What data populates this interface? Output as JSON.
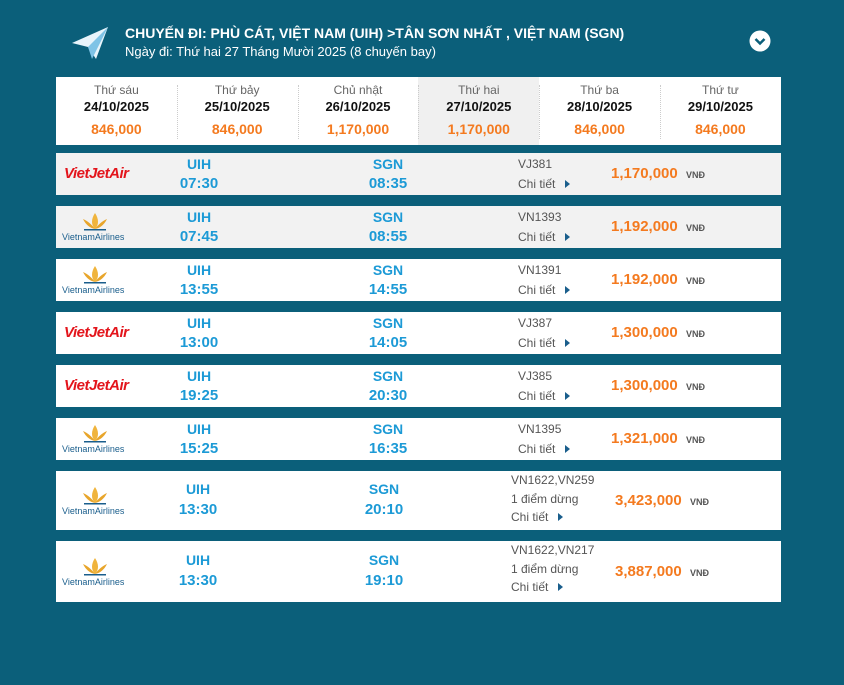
{
  "header": {
    "title": "CHUYẾN ĐI: PHÙ CÁT, VIỆT NAM (UIH) >TÂN SƠN NHẤT , VIỆT NAM (SGN)",
    "subtitle": "Ngày đi: Thứ hai 27 Tháng Mười 2025 (8 chuyến bay)"
  },
  "dates": [
    {
      "day": "Thứ sáu",
      "date": "24/10/2025",
      "price": "846,000"
    },
    {
      "day": "Thứ bảy",
      "date": "25/10/2025",
      "price": "846,000"
    },
    {
      "day": "Chủ nhật",
      "date": "26/10/2025",
      "price": "1,170,000"
    },
    {
      "day": "Thứ hai",
      "date": "27/10/2025",
      "price": "1,170,000",
      "selected": true
    },
    {
      "day": "Thứ ba",
      "date": "28/10/2025",
      "price": "846,000"
    },
    {
      "day": "Thứ tư",
      "date": "29/10/2025",
      "price": "846,000"
    }
  ],
  "flights": [
    {
      "airline": "VietJetAir",
      "from": "UIH",
      "dep": "07:30",
      "to": "SGN",
      "arr": "08:35",
      "code": "VJ381",
      "detail": "Chi tiết",
      "price": "1,170,000",
      "currency": "VNĐ",
      "shaded": true
    },
    {
      "airline": "VietnamAirlines",
      "from": "UIH",
      "dep": "07:45",
      "to": "SGN",
      "arr": "08:55",
      "code": "VN1393",
      "detail": "Chi tiết",
      "price": "1,192,000",
      "currency": "VNĐ",
      "shaded": true
    },
    {
      "airline": "VietnamAirlines",
      "from": "UIH",
      "dep": "13:55",
      "to": "SGN",
      "arr": "14:55",
      "code": "VN1391",
      "detail": "Chi tiết",
      "price": "1,192,000",
      "currency": "VNĐ"
    },
    {
      "airline": "VietJetAir",
      "from": "UIH",
      "dep": "13:00",
      "to": "SGN",
      "arr": "14:05",
      "code": "VJ387",
      "detail": "Chi tiết",
      "price": "1,300,000",
      "currency": "VNĐ"
    },
    {
      "airline": "VietJetAir",
      "from": "UIH",
      "dep": "19:25",
      "to": "SGN",
      "arr": "20:30",
      "code": "VJ385",
      "detail": "Chi tiết",
      "price": "1,300,000",
      "currency": "VNĐ"
    },
    {
      "airline": "VietnamAirlines",
      "from": "UIH",
      "dep": "15:25",
      "to": "SGN",
      "arr": "16:35",
      "code": "VN1395",
      "detail": "Chi tiết",
      "price": "1,321,000",
      "currency": "VNĐ"
    },
    {
      "airline": "VietnamAirlines",
      "from": "UIH",
      "dep": "13:30",
      "to": "SGN",
      "arr": "20:10",
      "code": "VN1622,VN259",
      "stops": "1 điểm dừng",
      "detail": "Chi tiết",
      "price": "3,423,000",
      "currency": "VNĐ"
    },
    {
      "airline": "VietnamAirlines",
      "from": "UIH",
      "dep": "13:30",
      "to": "SGN",
      "arr": "19:10",
      "code": "VN1622,VN217",
      "stops": "1 điểm dừng",
      "detail": "Chi tiết",
      "price": "3,887,000",
      "currency": "VNĐ"
    }
  ]
}
